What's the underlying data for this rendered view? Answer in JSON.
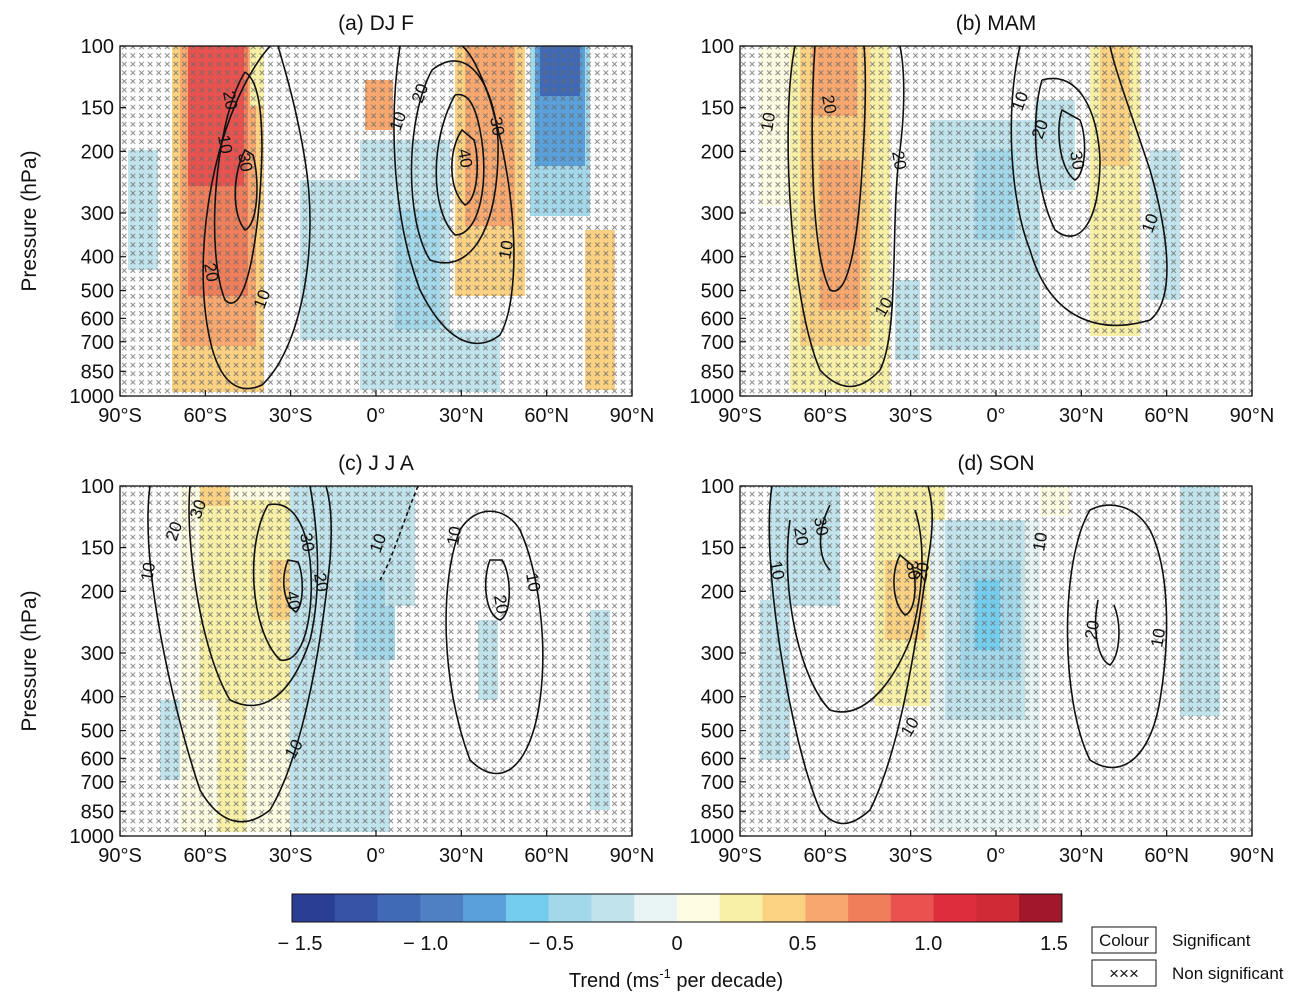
{
  "colors": {
    "colorbar": [
      "#2a3f93",
      "#3753a6",
      "#4069b6",
      "#4f80c4",
      "#5aa0da",
      "#75cdee",
      "#a2d8ea",
      "#c1e3ec",
      "#e8f4f4",
      "#fdfbe2",
      "#f7f0a6",
      "#fbd182",
      "#f8a86e",
      "#f07e5b",
      "#e9524e",
      "#de2d3b",
      "#d02a35",
      "#a0182a"
    ],
    "contour": "#111111",
    "cross": "#6b6b6b"
  },
  "figure": {
    "ylabel": "Pressure (hPa)",
    "colorbar_label": "Trend (ms",
    "colorbar_label_sup": "-1",
    "colorbar_label_tail": " per decade)",
    "colorbar_ticks": [
      "− 1.5",
      "− 1.0",
      "− 0.5",
      "0",
      "0.5",
      "1.0",
      "1.5"
    ],
    "legend": {
      "colour_box": "Colour",
      "colour_text": "Significant",
      "cross_box": "×××",
      "cross_text": "Non significant"
    }
  },
  "chart_data": [
    {
      "type": "heatmap",
      "title": "(a)  DJ F",
      "xticks": [
        "90°S",
        "60°S",
        "30°S",
        "0°",
        "30°N",
        "60°N",
        "90°N"
      ],
      "yticks": [
        "100",
        "150",
        "200",
        "300",
        "400",
        "500",
        "600",
        "700",
        "850",
        "1000"
      ],
      "xlim": [
        -90,
        90
      ],
      "ylim": [
        1000,
        100
      ],
      "y_scale": "log",
      "contour_levels": [
        10,
        20,
        30,
        40
      ],
      "contour_labels": [
        "10",
        "20",
        "30",
        "10",
        "20",
        "10",
        "20",
        "30",
        "40",
        "10"
      ]
    },
    {
      "type": "heatmap",
      "title": "(b)  MAM",
      "xticks": [
        "90°S",
        "60°S",
        "30°S",
        "0°",
        "30°N",
        "60°N",
        "90°N"
      ],
      "yticks": [
        "100",
        "150",
        "200",
        "300",
        "400",
        "500",
        "600",
        "700",
        "850",
        "1000"
      ],
      "xlim": [
        -90,
        90
      ],
      "ylim": [
        1000,
        100
      ],
      "y_scale": "log",
      "contour_levels": [
        10,
        20,
        30
      ],
      "contour_labels": [
        "10",
        "20",
        "20",
        "10",
        "10",
        "20",
        "30",
        "10"
      ]
    },
    {
      "type": "heatmap",
      "title": "(c)  J J A",
      "xticks": [
        "90°S",
        "60°S",
        "30°S",
        "0°",
        "30°N",
        "60°N",
        "90°N"
      ],
      "yticks": [
        "100",
        "150",
        "200",
        "300",
        "400",
        "500",
        "600",
        "700",
        "850",
        "1000"
      ],
      "xlim": [
        -90,
        90
      ],
      "ylim": [
        1000,
        100
      ],
      "y_scale": "log",
      "contour_levels": [
        -10,
        10,
        20,
        30,
        40
      ],
      "contour_labels": [
        "10",
        "20",
        "30",
        "30",
        "40",
        "20",
        "10",
        "10",
        "10",
        "20",
        "10"
      ]
    },
    {
      "type": "heatmap",
      "title": "(d)  SON",
      "xticks": [
        "90°S",
        "60°S",
        "30°S",
        "0°",
        "30°N",
        "60°N",
        "90°N"
      ],
      "yticks": [
        "100",
        "150",
        "200",
        "300",
        "400",
        "500",
        "600",
        "700",
        "850",
        "1000"
      ],
      "xlim": [
        -90,
        90
      ],
      "ylim": [
        1000,
        100
      ],
      "y_scale": "log",
      "contour_levels": [
        10,
        20,
        30
      ],
      "contour_labels": [
        "10",
        "20",
        "30",
        "30",
        "20",
        "10",
        "10",
        "20",
        "10"
      ]
    }
  ]
}
